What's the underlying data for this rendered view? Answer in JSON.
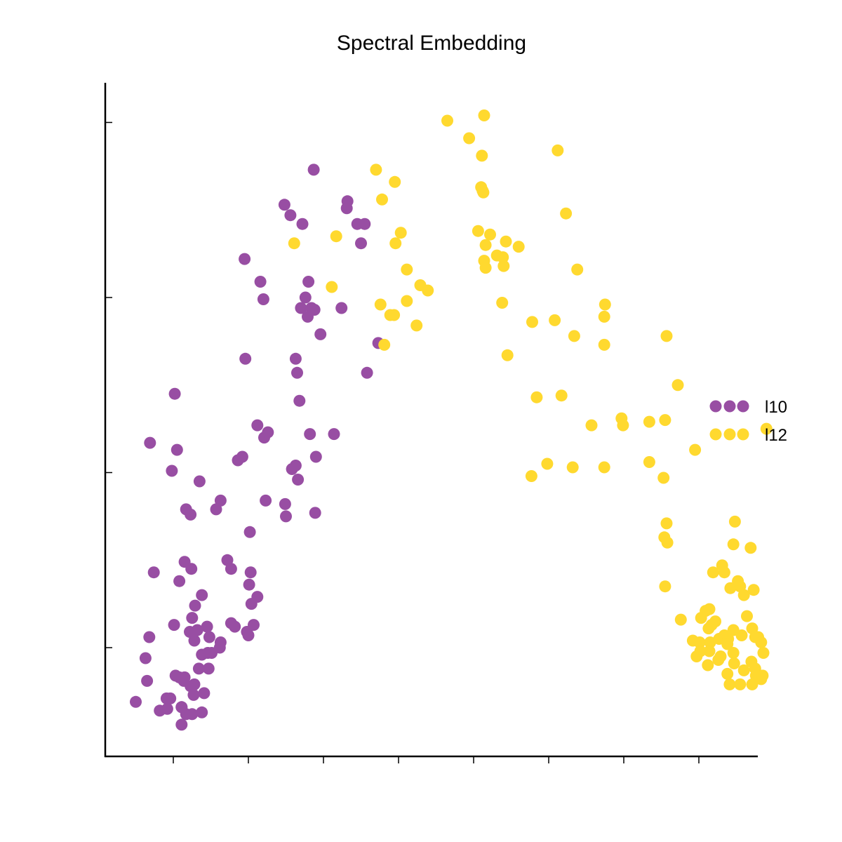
{
  "chart_data": {
    "type": "scatter",
    "title": "Spectral Embedding",
    "xlabel": "",
    "ylabel": "",
    "xlim": [
      -0.9,
      7.8
    ],
    "ylim": [
      -0.62,
      3.22
    ],
    "x_ticks": [
      0,
      1,
      2,
      3,
      4,
      5,
      6,
      7
    ],
    "y_ticks": [
      0,
      1,
      2,
      3
    ],
    "tick_labels_shown": false,
    "grid": false,
    "legend_position": "right",
    "series": [
      {
        "name": "l10",
        "color": "#984ea3",
        "points": [
          [
            1.87,
            2.73
          ],
          [
            1.48,
            2.53
          ],
          [
            1.56,
            2.47
          ],
          [
            1.72,
            2.42
          ],
          [
            2.32,
            2.55
          ],
          [
            2.31,
            2.51
          ],
          [
            2.45,
            2.42
          ],
          [
            2.55,
            2.42
          ],
          [
            2.5,
            2.31
          ],
          [
            0.95,
            2.22
          ],
          [
            1.16,
            2.09
          ],
          [
            1.2,
            1.99
          ],
          [
            1.8,
            2.09
          ],
          [
            1.76,
            2.0
          ],
          [
            1.7,
            1.94
          ],
          [
            1.84,
            1.94
          ],
          [
            1.88,
            1.93
          ],
          [
            1.79,
            1.89
          ],
          [
            2.24,
            1.94
          ],
          [
            1.96,
            1.79
          ],
          [
            2.73,
            1.74
          ],
          [
            0.96,
            1.65
          ],
          [
            1.63,
            1.65
          ],
          [
            1.65,
            1.57
          ],
          [
            2.58,
            1.57
          ],
          [
            0.02,
            1.45
          ],
          [
            1.68,
            1.41
          ],
          [
            -0.31,
            1.17
          ],
          [
            0.05,
            1.13
          ],
          [
            1.12,
            1.27
          ],
          [
            1.21,
            1.2
          ],
          [
            1.26,
            1.23
          ],
          [
            1.82,
            1.22
          ],
          [
            2.14,
            1.22
          ],
          [
            1.9,
            1.09
          ],
          [
            0.86,
            1.07
          ],
          [
            0.92,
            1.09
          ],
          [
            1.58,
            1.02
          ],
          [
            1.63,
            1.04
          ],
          [
            1.66,
            0.96
          ],
          [
            -0.02,
            1.01
          ],
          [
            0.35,
            0.95
          ],
          [
            0.17,
            0.79
          ],
          [
            0.23,
            0.76
          ],
          [
            0.57,
            0.79
          ],
          [
            0.63,
            0.84
          ],
          [
            1.23,
            0.84
          ],
          [
            1.49,
            0.82
          ],
          [
            1.89,
            0.77
          ],
          [
            1.5,
            0.75
          ],
          [
            1.02,
            0.66
          ],
          [
            0.15,
            0.49
          ],
          [
            0.24,
            0.45
          ],
          [
            0.72,
            0.5
          ],
          [
            0.77,
            0.45
          ],
          [
            1.03,
            0.43
          ],
          [
            0.08,
            0.38
          ],
          [
            -0.26,
            0.43
          ],
          [
            1.01,
            0.36
          ],
          [
            0.38,
            0.3
          ],
          [
            0.29,
            0.24
          ],
          [
            1.12,
            0.29
          ],
          [
            1.04,
            0.25
          ],
          [
            0.25,
            0.17
          ],
          [
            0.32,
            0.1
          ],
          [
            0.01,
            0.13
          ],
          [
            0.45,
            0.12
          ],
          [
            0.77,
            0.14
          ],
          [
            0.82,
            0.12
          ],
          [
            1.07,
            0.13
          ],
          [
            1.0,
            0.07
          ],
          [
            0.98,
            0.09
          ],
          [
            0.22,
            0.09
          ],
          [
            0.28,
            0.04
          ],
          [
            0.48,
            0.06
          ],
          [
            0.62,
            0.0
          ],
          [
            0.63,
            0.03
          ],
          [
            0.38,
            -0.04
          ],
          [
            0.51,
            -0.03
          ],
          [
            0.46,
            -0.03
          ],
          [
            -0.32,
            0.06
          ],
          [
            -0.37,
            -0.06
          ],
          [
            0.34,
            -0.12
          ],
          [
            0.47,
            -0.12
          ],
          [
            0.08,
            -0.17
          ],
          [
            0.15,
            -0.17
          ],
          [
            0.14,
            -0.19
          ],
          [
            0.23,
            -0.22
          ],
          [
            0.28,
            -0.21
          ],
          [
            0.03,
            -0.16
          ],
          [
            -0.35,
            -0.19
          ],
          [
            0.41,
            -0.26
          ],
          [
            0.27,
            -0.27
          ],
          [
            -0.04,
            -0.29
          ],
          [
            -0.09,
            -0.29
          ],
          [
            0.11,
            -0.34
          ],
          [
            0.25,
            -0.38
          ],
          [
            -0.5,
            -0.31
          ],
          [
            0.17,
            -0.38
          ],
          [
            -0.08,
            -0.35
          ],
          [
            0.38,
            -0.37
          ],
          [
            0.11,
            -0.34
          ],
          [
            -0.18,
            -0.36
          ],
          [
            0.11,
            -0.44
          ]
        ]
      },
      {
        "name": "l12",
        "color": "#ffd92f",
        "points": [
          [
            4.14,
            3.04
          ],
          [
            3.65,
            3.01
          ],
          [
            3.94,
            2.91
          ],
          [
            4.11,
            2.81
          ],
          [
            5.12,
            2.84
          ],
          [
            2.7,
            2.73
          ],
          [
            2.95,
            2.66
          ],
          [
            4.1,
            2.63
          ],
          [
            4.12,
            2.61
          ],
          [
            4.13,
            2.6
          ],
          [
            2.78,
            2.56
          ],
          [
            5.23,
            2.48
          ],
          [
            1.61,
            2.31
          ],
          [
            2.17,
            2.35
          ],
          [
            2.96,
            2.31
          ],
          [
            3.03,
            2.37
          ],
          [
            4.06,
            2.38
          ],
          [
            4.22,
            2.36
          ],
          [
            4.16,
            2.3
          ],
          [
            4.43,
            2.32
          ],
          [
            4.6,
            2.29
          ],
          [
            4.31,
            2.24
          ],
          [
            4.14,
            2.21
          ],
          [
            4.16,
            2.17
          ],
          [
            4.4,
            2.18
          ],
          [
            4.39,
            2.23
          ],
          [
            3.11,
            2.16
          ],
          [
            5.38,
            2.16
          ],
          [
            3.29,
            2.07
          ],
          [
            2.11,
            2.06
          ],
          [
            3.39,
            2.04
          ],
          [
            3.11,
            1.98
          ],
          [
            2.76,
            1.96
          ],
          [
            2.89,
            1.9
          ],
          [
            2.94,
            1.9
          ],
          [
            4.38,
            1.97
          ],
          [
            5.75,
            1.96
          ],
          [
            5.74,
            1.89
          ],
          [
            4.78,
            1.86
          ],
          [
            5.08,
            1.87
          ],
          [
            3.24,
            1.84
          ],
          [
            5.34,
            1.78
          ],
          [
            5.74,
            1.73
          ],
          [
            6.57,
            1.78
          ],
          [
            4.45,
            1.67
          ],
          [
            2.81,
            1.73
          ],
          [
            6.72,
            1.5
          ],
          [
            4.84,
            1.43
          ],
          [
            5.17,
            1.44
          ],
          [
            5.97,
            1.31
          ],
          [
            6.34,
            1.29
          ],
          [
            6.55,
            1.3
          ],
          [
            7.9,
            1.25
          ],
          [
            5.57,
            1.27
          ],
          [
            5.99,
            1.27
          ],
          [
            6.95,
            1.13
          ],
          [
            4.98,
            1.05
          ],
          [
            5.32,
            1.03
          ],
          [
            6.34,
            1.06
          ],
          [
            6.53,
            0.97
          ],
          [
            4.77,
            0.98
          ],
          [
            5.74,
            1.03
          ],
          [
            6.57,
            0.71
          ],
          [
            6.58,
            0.6
          ],
          [
            6.54,
            0.63
          ],
          [
            7.69,
            0.57
          ],
          [
            6.55,
            0.35
          ],
          [
            7.48,
            0.72
          ],
          [
            7.46,
            0.59
          ],
          [
            7.31,
            0.47
          ],
          [
            7.34,
            0.43
          ],
          [
            7.19,
            0.43
          ],
          [
            7.42,
            0.34
          ],
          [
            7.55,
            0.35
          ],
          [
            7.6,
            0.3
          ],
          [
            7.73,
            0.33
          ],
          [
            7.52,
            0.38
          ],
          [
            7.09,
            0.21
          ],
          [
            7.14,
            0.22
          ],
          [
            7.22,
            0.15
          ],
          [
            7.03,
            0.17
          ],
          [
            7.17,
            0.13
          ],
          [
            6.76,
            0.16
          ],
          [
            7.64,
            0.18
          ],
          [
            7.71,
            0.11
          ],
          [
            7.79,
            0.06
          ],
          [
            7.75,
            0.06
          ],
          [
            7.13,
            0.11
          ],
          [
            7.27,
            0.05
          ],
          [
            7.34,
            0.07
          ],
          [
            7.46,
            0.1
          ],
          [
            7.39,
            0.05
          ],
          [
            7.57,
            0.07
          ],
          [
            7.83,
            0.03
          ],
          [
            6.92,
            0.04
          ],
          [
            7.01,
            0.03
          ],
          [
            7.15,
            0.03
          ],
          [
            7.38,
            0.02
          ],
          [
            6.97,
            -0.05
          ],
          [
            7.14,
            -0.02
          ],
          [
            7.02,
            -0.02
          ],
          [
            7.29,
            -0.05
          ],
          [
            7.46,
            -0.03
          ],
          [
            7.7,
            -0.08
          ],
          [
            7.86,
            -0.03
          ],
          [
            7.12,
            -0.1
          ],
          [
            7.26,
            -0.07
          ],
          [
            7.47,
            -0.09
          ],
          [
            7.75,
            -0.12
          ],
          [
            7.38,
            -0.15
          ],
          [
            7.6,
            -0.13
          ],
          [
            7.83,
            -0.18
          ],
          [
            7.71,
            -0.21
          ],
          [
            7.41,
            -0.21
          ],
          [
            7.76,
            -0.16
          ],
          [
            7.55,
            -0.21
          ],
          [
            7.85,
            -0.16
          ]
        ]
      }
    ]
  }
}
